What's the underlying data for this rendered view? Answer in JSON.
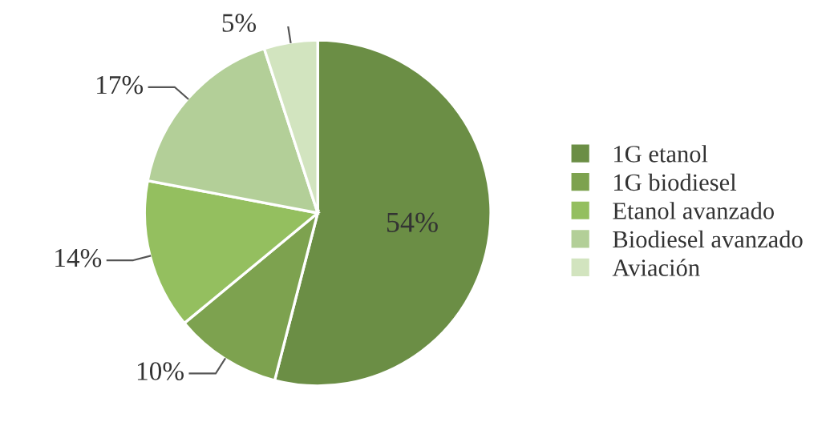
{
  "chart_data": {
    "type": "pie",
    "categories": [
      "1G etanol",
      "1G biodiesel",
      "Etanol avanzado",
      "Biodiesel avanzado",
      "Aviación"
    ],
    "values": [
      54,
      10,
      14,
      17,
      5
    ],
    "colors": [
      "#6b8e45",
      "#7da24f",
      "#94bf5f",
      "#b3cf98",
      "#d2e4bf"
    ],
    "value_labels": [
      "54%",
      "10%",
      "14%",
      "17%",
      "5%"
    ],
    "legend": "right"
  }
}
